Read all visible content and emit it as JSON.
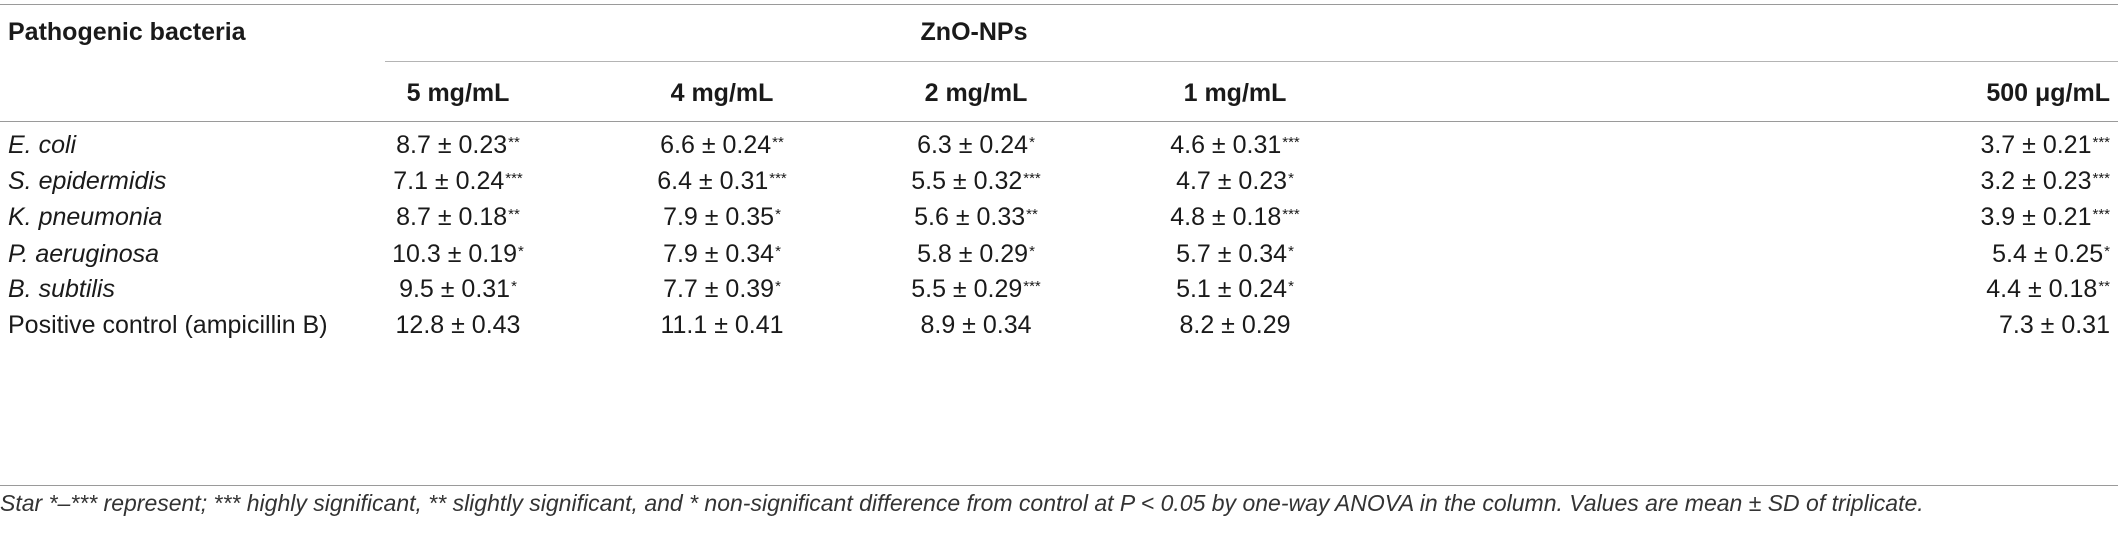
{
  "table": {
    "row_header": "Pathogenic bacteria",
    "group_header": "ZnO-NPs",
    "columns": [
      "5 mg/mL",
      "4 mg/mL",
      "2 mg/mL",
      "1 mg/mL",
      "500 μg/mL"
    ],
    "rows": [
      {
        "label": "E. coli",
        "italic": true,
        "cells": [
          {
            "v": "8.7 ± 0.23",
            "s": "**"
          },
          {
            "v": "6.6 ± 0.24",
            "s": "**"
          },
          {
            "v": "6.3 ± 0.24",
            "s": "*"
          },
          {
            "v": "4.6 ± 0.31",
            "s": "***"
          },
          {
            "v": "3.7 ± 0.21",
            "s": "***"
          }
        ]
      },
      {
        "label": "S. epidermidis",
        "italic": true,
        "cells": [
          {
            "v": "7.1 ± 0.24",
            "s": "***"
          },
          {
            "v": "6.4 ± 0.31",
            "s": "***"
          },
          {
            "v": "5.5 ± 0.32",
            "s": "***"
          },
          {
            "v": "4.7 ± 0.23",
            "s": "*"
          },
          {
            "v": "3.2 ± 0.23",
            "s": "***"
          }
        ]
      },
      {
        "label": "K. pneumonia",
        "italic": true,
        "cells": [
          {
            "v": "8.7 ± 0.18",
            "s": "**"
          },
          {
            "v": "7.9 ± 0.35",
            "s": "*"
          },
          {
            "v": "5.6 ± 0.33",
            "s": "**"
          },
          {
            "v": "4.8 ± 0.18",
            "s": "***"
          },
          {
            "v": "3.9 ± 0.21",
            "s": "***"
          }
        ]
      },
      {
        "label": "P. aeruginosa",
        "italic": true,
        "cells": [
          {
            "v": "10.3 ± 0.19",
            "s": "*"
          },
          {
            "v": "7.9 ± 0.34",
            "s": "*"
          },
          {
            "v": "5.8 ± 0.29",
            "s": "*"
          },
          {
            "v": "5.7 ± 0.34",
            "s": "*"
          },
          {
            "v": "5.4 ± 0.25",
            "s": "*"
          }
        ]
      },
      {
        "label": "B. subtilis",
        "italic": true,
        "cells": [
          {
            "v": "9.5 ± 0.31",
            "s": "*"
          },
          {
            "v": "7.7 ± 0.39",
            "s": "*"
          },
          {
            "v": "5.5 ± 0.29",
            "s": "***"
          },
          {
            "v": "5.1 ± 0.24",
            "s": "*"
          },
          {
            "v": "4.4 ± 0.18",
            "s": "**"
          }
        ]
      },
      {
        "label": "Positive control (ampicillin B)",
        "italic": false,
        "cells": [
          {
            "v": "12.8 ± 0.43",
            "s": ""
          },
          {
            "v": "11.1 ± 0.41",
            "s": ""
          },
          {
            "v": "8.9 ± 0.34",
            "s": ""
          },
          {
            "v": "8.2 ± 0.29",
            "s": ""
          },
          {
            "v": "7.3 ± 0.31",
            "s": ""
          }
        ]
      }
    ]
  },
  "footnote": "Star *–*** represent; *** highly significant, ** slightly significant, and * non-significant difference from control at P < 0.05 by one-way ANOVA in the column. Values are mean ± SD of triplicate."
}
